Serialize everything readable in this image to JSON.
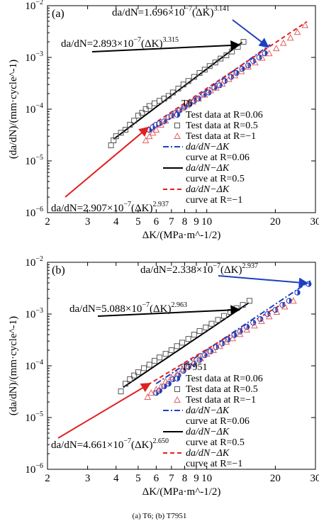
{
  "figure": {
    "caption": "(a) T6; (b) T7951"
  },
  "chart_data": [
    {
      "type": "scatter",
      "panel_label": "(a)",
      "scale": "log-log",
      "xlabel": "ΔK/(MPa·m^-1/2)",
      "ylabel": "(da/dN)/(mm·cycle^-1)",
      "xlim": [
        2,
        30
      ],
      "ylim": [
        1e-06,
        0.01
      ],
      "x_ticks": [
        2,
        3,
        4,
        5,
        6,
        7,
        8,
        9,
        10,
        20,
        30
      ],
      "y_ticks": [
        "10^-6",
        "10^-5",
        "10^-4",
        "10^-3",
        "10^-2"
      ],
      "legend_title": "T6",
      "legend_position": "right-middle",
      "legend": [
        {
          "label": "Test data at R=0.06",
          "kind": "marker-halfcircle",
          "color": "#1f3fbf"
        },
        {
          "label": "Test data at R=0.5",
          "kind": "marker-square",
          "color": "#555555"
        },
        {
          "label": "Test data at R=−1",
          "kind": "marker-triangle",
          "color": "#e06060"
        },
        {
          "label": "da/dN−ΔK curve at R=0.06",
          "kind": "line-dashdot",
          "color": "#1f3fbf"
        },
        {
          "label": "da/dN−ΔK curve at R=0.5",
          "kind": "line-solid",
          "color": "#000000"
        },
        {
          "label": "da/dN−ΔK curve at R=−1",
          "kind": "line-dashed",
          "color": "#e02020"
        }
      ],
      "series": [
        {
          "name": "Test data at R=0.06",
          "marker": "halfcircle",
          "color": "#1f3fbf",
          "x": [
            5.6,
            5.8,
            6.0,
            6.2,
            6.5,
            6.8,
            7.0,
            7.3,
            7.6,
            8.0,
            8.4,
            8.8,
            9.2,
            9.7,
            10.2,
            10.8,
            11.4,
            12.0,
            12.8,
            13.5,
            14.3,
            15.2,
            16.0,
            17.0,
            18.0
          ],
          "y": [
            4e-05,
            4.5e-05,
            5e-05,
            5.3e-05,
            5.8e-05,
            7e-05,
            7.5e-05,
            8.5e-05,
            9.5e-05,
            0.00011,
            0.000125,
            0.000145,
            0.00016,
            0.00019,
            0.00021,
            0.00026,
            0.00029,
            0.00035,
            0.00042,
            0.0005,
            0.0006,
            0.0007,
            0.00085,
            0.001,
            0.0012
          ]
        },
        {
          "name": "Test data at R=0.5",
          "marker": "square",
          "color": "#555555",
          "x": [
            3.8,
            3.9,
            4.0,
            4.2,
            4.4,
            4.6,
            4.8,
            5.0,
            5.2,
            5.4,
            5.6,
            5.9,
            6.2,
            6.5,
            6.8,
            7.1,
            7.5,
            7.9,
            8.3,
            8.8,
            9.3,
            9.8,
            10.3,
            10.9,
            11.5,
            12.2,
            12.9,
            13.7,
            14.5
          ],
          "y": [
            2e-05,
            2.5e-05,
            3e-05,
            3.5e-05,
            4e-05,
            5e-05,
            6e-05,
            7.5e-05,
            8.5e-05,
            0.0001,
            0.000115,
            0.00013,
            0.000145,
            0.00016,
            0.00018,
            0.00021,
            0.00025,
            0.0003,
            0.00035,
            0.00042,
            0.0005,
            0.00058,
            0.00068,
            0.0008,
            0.00095,
            0.0011,
            0.0013,
            0.0016,
            0.002
          ]
        },
        {
          "name": "Test data at R=−1",
          "marker": "triangle",
          "color": "#e06060",
          "x": [
            5.4,
            5.6,
            5.8,
            6.0,
            6.3,
            6.6,
            7.0,
            7.4,
            7.8,
            8.2,
            8.7,
            9.2,
            9.8,
            10.4,
            11.0,
            11.7,
            12.5,
            13.3,
            14.2,
            15.2,
            16.3,
            17.5,
            18.8,
            20.2,
            21.7,
            23.3,
            25.0,
            27.0
          ],
          "y": [
            2.5e-05,
            3e-05,
            3.5e-05,
            4e-05,
            5e-05,
            6e-05,
            7.5e-05,
            9e-05,
            0.000105,
            0.00012,
            0.00014,
            0.00016,
            0.00019,
            0.00023,
            0.00026,
            0.00031,
            0.00038,
            0.00045,
            0.00054,
            0.00066,
            0.0008,
            0.00098,
            0.0012,
            0.0015,
            0.0019,
            0.0024,
            0.0031,
            0.0042
          ]
        },
        {
          "name": "da/dN−ΔK curve at R=0.06",
          "line": "dashdot",
          "color": "#1f3fbf",
          "coef": 1.696e-07,
          "exp": 3.141,
          "x": [
            5.5,
            19
          ]
        },
        {
          "name": "da/dN−ΔK curve at R=0.5",
          "line": "solid",
          "color": "#000000",
          "coef": 2.893e-07,
          "exp": 3.315,
          "x": [
            3.9,
            14.3
          ]
        },
        {
          "name": "da/dN−ΔK curve at R=−1",
          "line": "dashed",
          "color": "#e02020",
          "coef": 2.907e-07,
          "exp": 2.937,
          "x": [
            5.4,
            27.5
          ]
        }
      ],
      "annotations": [
        {
          "pre": "da/dN=1.696×10",
          "exp10": "−7",
          "mid": "(ΔK)",
          "exp": "3.141",
          "arrow_color": "#1f3fbf",
          "target": "R=0.06 fit"
        },
        {
          "pre": "da/dN=2.893×10",
          "exp10": "−7",
          "mid": "(ΔK)",
          "exp": "3.315",
          "arrow_color": "#000000",
          "target": "R=0.5 fit"
        },
        {
          "pre": "da/dN=2.907×10",
          "exp10": "−7",
          "mid": "(ΔK)",
          "exp": "2.937",
          "arrow_color": "#e02020",
          "target": "R=−1 fit"
        }
      ]
    },
    {
      "type": "scatter",
      "panel_label": "(b)",
      "scale": "log-log",
      "xlabel": "ΔK/(MPa·m^-1/2)",
      "ylabel": "(da/dN)/(mm·cycle^-1)",
      "xlim": [
        2,
        30
      ],
      "ylim": [
        1e-06,
        0.01
      ],
      "x_ticks": [
        2,
        3,
        4,
        5,
        6,
        7,
        8,
        9,
        10,
        20,
        30
      ],
      "y_ticks": [
        "10^-6",
        "10^-5",
        "10^-4",
        "10^-3",
        "10^-2"
      ],
      "legend_title": "T7951",
      "legend_position": "right-middle",
      "legend": [
        {
          "label": "Test data at R=0.06",
          "kind": "marker-halfcircle",
          "color": "#1f3fbf"
        },
        {
          "label": "Test data at R=0.5",
          "kind": "marker-square",
          "color": "#555555"
        },
        {
          "label": "Test data at R=−1",
          "kind": "marker-triangle",
          "color": "#e06060"
        },
        {
          "label": "da/dN−ΔK curve at R=0.06",
          "kind": "line-dashdot",
          "color": "#1f3fbf"
        },
        {
          "label": "da/dN−ΔK curve at R=0.5",
          "kind": "line-solid",
          "color": "#000000"
        },
        {
          "label": "da/dN−ΔK curve at R=−1",
          "kind": "line-dashed",
          "color": "#e02020"
        }
      ],
      "series": [
        {
          "name": "Test data at R=0.06",
          "marker": "halfcircle",
          "color": "#1f3fbf",
          "x": [
            6.0,
            6.2,
            6.5,
            6.8,
            7.1,
            7.5,
            7.9,
            8.3,
            8.8,
            9.3,
            9.8,
            10.4,
            11.0,
            11.7,
            12.4,
            13.2,
            14.0,
            15.0,
            16.0,
            17.2,
            18.5,
            20.0,
            21.5,
            23.0,
            25.0,
            28.0
          ],
          "y": [
            3e-05,
            3.3e-05,
            4e-05,
            4.5e-05,
            5.5e-05,
            6.5e-05,
            8e-05,
            9.5e-05,
            0.00011,
            0.00013,
            0.00016,
            0.00019,
            0.00023,
            0.00027,
            0.00032,
            0.00039,
            0.00046,
            0.00056,
            0.00068,
            0.0008,
            0.001,
            0.0012,
            0.0015,
            0.0018,
            0.0026,
            0.0038
          ]
        },
        {
          "name": "Test data at R=0.5",
          "marker": "square",
          "color": "#555555",
          "x": [
            4.2,
            4.4,
            4.6,
            4.8,
            5.0,
            5.3,
            5.6,
            5.9,
            6.2,
            6.6,
            7.0,
            7.4,
            7.8,
            8.3,
            8.8,
            9.3,
            9.9,
            10.5,
            11.2,
            11.9,
            12.7,
            13.5,
            14.4,
            15.4
          ],
          "y": [
            3.2e-05,
            4.5e-05,
            5.5e-05,
            6.5e-05,
            7.5e-05,
            9e-05,
            0.000105,
            0.000125,
            0.000145,
            0.00017,
            0.0002,
            0.00024,
            0.00028,
            0.00033,
            0.0004,
            0.00047,
            0.00055,
            0.00065,
            0.00077,
            0.00092,
            0.0011,
            0.0013,
            0.0015,
            0.0018
          ]
        },
        {
          "name": "Test data at R=−1",
          "marker": "triangle",
          "color": "#e06060",
          "x": [
            5.5,
            5.7,
            6.0,
            6.3,
            6.6,
            7.0,
            7.4,
            7.8,
            8.3,
            8.8,
            9.4,
            10.0,
            10.7,
            11.4,
            12.2,
            13.0,
            14.0,
            15.0,
            16.2,
            17.4,
            18.8,
            20.3,
            22.0,
            24.0
          ],
          "y": [
            2.5e-05,
            3e-05,
            3.5e-05,
            4e-05,
            5e-05,
            6e-05,
            7e-05,
            8.5e-05,
            0.0001,
            0.00012,
            0.00014,
            0.00017,
            0.0002,
            0.00024,
            0.00029,
            0.00034,
            0.00041,
            0.0005,
            0.0006,
            0.00073,
            0.0009,
            0.0011,
            0.0014,
            0.0018
          ]
        },
        {
          "name": "da/dN−ΔK curve at R=0.06",
          "line": "dashdot",
          "color": "#1f3fbf",
          "coef": 2.338e-07,
          "exp": 2.937,
          "x": [
            6.0,
            28.5
          ]
        },
        {
          "name": "da/dN−ΔK curve at R=0.5",
          "line": "solid",
          "color": "#000000",
          "coef": 5.088e-07,
          "exp": 2.963,
          "x": [
            4.3,
            15.3
          ]
        },
        {
          "name": "da/dN−ΔK curve at R=−1",
          "line": "dashed",
          "color": "#e02020",
          "coef": 4.661e-07,
          "exp": 2.65,
          "x": [
            5.5,
            24
          ]
        }
      ],
      "annotations": [
        {
          "pre": "da/dN=2.338×10",
          "exp10": "−7",
          "mid": "(ΔK)",
          "exp": "2.937",
          "arrow_color": "#1f3fbf",
          "target": "R=0.06 fit"
        },
        {
          "pre": "da/dN=5.088×10",
          "exp10": "−7",
          "mid": "(ΔK)",
          "exp": "2.963",
          "arrow_color": "#000000",
          "target": "R=0.5 fit"
        },
        {
          "pre": "da/dN=4.661×10",
          "exp10": "−7",
          "mid": "(ΔK)",
          "exp": "2.650",
          "arrow_color": "#e02020",
          "target": "R=−1 fit"
        }
      ]
    }
  ]
}
